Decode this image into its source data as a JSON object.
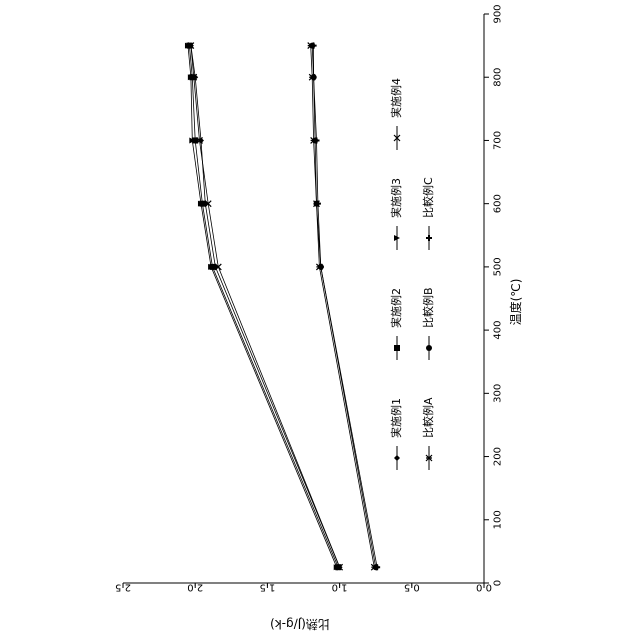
{
  "chart_data": {
    "type": "line",
    "orientation": "rotated-90-clockwise",
    "xlabel": "温度(℃)",
    "ylabel": "比熱(J/g-k)",
    "xlim": [
      0,
      900
    ],
    "ylim": [
      0,
      2.5
    ],
    "x_ticks": [
      "0",
      "100",
      "200",
      "300",
      "400",
      "500",
      "600",
      "700",
      "800",
      "900"
    ],
    "y_ticks": [
      "0.0",
      "0.5",
      "1.0",
      "1.5",
      "2.0",
      "2.5"
    ],
    "x": [
      25,
      500,
      600,
      700,
      800,
      850
    ],
    "series": [
      {
        "name": "実施例1",
        "marker": "diamond",
        "values": [
          1.0,
          1.86,
          1.93,
          1.96,
          2.0,
          2.03
        ]
      },
      {
        "name": "実施例2",
        "marker": "square",
        "values": [
          1.01,
          1.88,
          1.95,
          2.0,
          2.02,
          2.04
        ]
      },
      {
        "name": "実施例3",
        "marker": "triangle",
        "values": [
          1.02,
          1.89,
          1.96,
          2.02,
          2.03,
          2.05
        ]
      },
      {
        "name": "実施例4",
        "marker": "x",
        "values": [
          1.0,
          1.84,
          1.91,
          1.97,
          2.01,
          2.03
        ]
      },
      {
        "name": "比較例A",
        "marker": "star",
        "values": [
          0.76,
          1.14,
          1.16,
          1.18,
          1.19,
          1.2
        ]
      },
      {
        "name": "比較例B",
        "marker": "circle",
        "values": [
          0.75,
          1.13,
          1.16,
          1.17,
          1.18,
          1.19
        ]
      },
      {
        "name": "比較例C",
        "marker": "plus",
        "values": [
          0.74,
          1.13,
          1.15,
          1.16,
          1.18,
          1.18
        ]
      }
    ],
    "grid": false,
    "legend_position": "center"
  }
}
